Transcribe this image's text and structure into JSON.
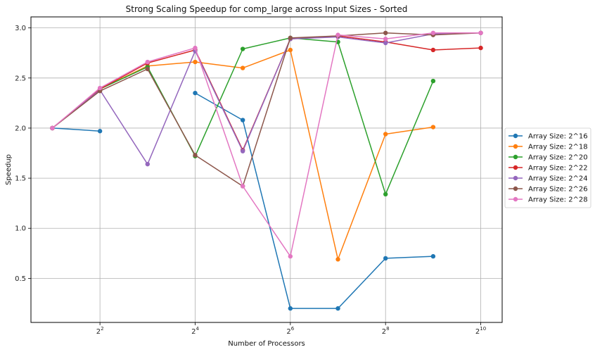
{
  "chart_data": {
    "type": "line",
    "title": "Strong Scaling Speedup for comp_large across Input Sizes - Sorted",
    "xlabel": "Number of Processors",
    "ylabel": "Speedup",
    "xscale": "log2",
    "x": [
      2,
      4,
      8,
      16,
      32,
      64,
      128,
      256,
      512,
      1024
    ],
    "xticks": [
      {
        "value": 4,
        "base": "2",
        "exp": "2"
      },
      {
        "value": 16,
        "base": "2",
        "exp": "4"
      },
      {
        "value": 64,
        "base": "2",
        "exp": "6"
      },
      {
        "value": 256,
        "base": "2",
        "exp": "8"
      },
      {
        "value": 1024,
        "base": "2",
        "exp": "10"
      }
    ],
    "ylim": [
      0.06,
      3.11
    ],
    "yticks": [
      "0.5",
      "1.0",
      "1.5",
      "2.0",
      "2.5",
      "3.0"
    ],
    "grid": true,
    "legend_position": "right-outside",
    "series": [
      {
        "name": "Array Size: 2^16",
        "color": "#1f77b4",
        "values": [
          2.0,
          1.97,
          null,
          2.35,
          2.08,
          0.2,
          0.2,
          0.7,
          0.72,
          null
        ]
      },
      {
        "name": "Array Size: 2^18",
        "color": "#ff7f0e",
        "values": [
          2.0,
          2.39,
          2.62,
          2.66,
          2.6,
          2.78,
          0.69,
          1.94,
          2.01,
          null
        ]
      },
      {
        "name": "Array Size: 2^20",
        "color": "#2ca02c",
        "values": [
          2.0,
          2.39,
          2.61,
          1.72,
          2.79,
          2.9,
          2.86,
          1.34,
          2.47,
          null
        ]
      },
      {
        "name": "Array Size: 2^22",
        "color": "#d62728",
        "values": [
          2.0,
          2.39,
          2.65,
          2.78,
          1.78,
          2.89,
          2.92,
          2.86,
          2.78,
          2.8
        ]
      },
      {
        "name": "Array Size: 2^24",
        "color": "#9467bd",
        "values": [
          2.0,
          2.38,
          1.64,
          2.77,
          1.77,
          2.89,
          2.91,
          2.85,
          2.94,
          2.95
        ]
      },
      {
        "name": "Array Size: 2^26",
        "color": "#8c564b",
        "values": [
          2.0,
          2.37,
          2.59,
          1.73,
          1.42,
          2.9,
          2.92,
          2.95,
          2.93,
          2.95
        ]
      },
      {
        "name": "Array Size: 2^28",
        "color": "#e377c2",
        "values": [
          2.0,
          2.4,
          2.66,
          2.8,
          1.42,
          0.72,
          2.93,
          2.89,
          2.95,
          2.95
        ]
      }
    ]
  }
}
